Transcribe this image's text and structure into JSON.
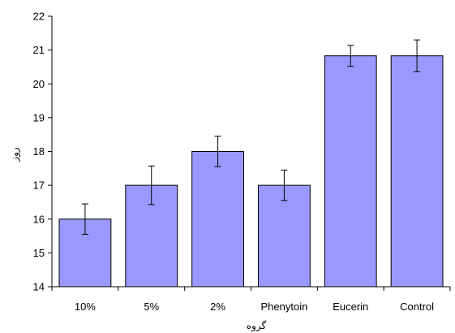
{
  "chart_data": {
    "type": "bar",
    "title": "",
    "categories": [
      "10%",
      "5%",
      "2%",
      "Phenytoin",
      "Eucerin",
      "Control"
    ],
    "values": [
      16.0,
      17.0,
      18.0,
      17.0,
      20.83,
      20.83
    ],
    "error_low": [
      15.55,
      16.43,
      17.55,
      16.55,
      20.52,
      20.36
    ],
    "error_high": [
      16.45,
      17.57,
      18.45,
      17.45,
      21.14,
      21.3
    ],
    "ylim": [
      14,
      22
    ],
    "yticks": [
      "14",
      "15",
      "16",
      "17",
      "18",
      "19",
      "20",
      "21",
      "22"
    ],
    "xlabel": "گروه",
    "ylabel": "روز",
    "grid": false,
    "legend": "none",
    "colors": {
      "bar_fill": "#9999ff",
      "bar_stroke": "#000000",
      "axis": "#000000"
    }
  }
}
